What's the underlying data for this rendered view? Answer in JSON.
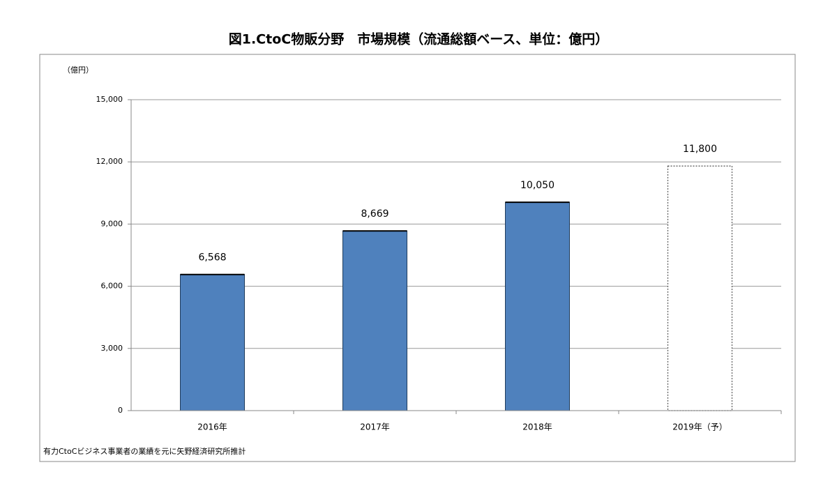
{
  "chart_data": {
    "type": "bar",
    "title": "図1.CtoC物販分野　市場規模（流通総額ベース、単位：億円）",
    "y_label": "（億円）",
    "note": "有力CtoCビジネス事業者の業績を元に矢野経済研究所推計",
    "categories": [
      "2016年",
      "2017年",
      "2018年",
      "2019年（予）"
    ],
    "values": [
      6568,
      8669,
      10050,
      11800
    ],
    "value_labels": [
      "6,568",
      "8,669",
      "10,050",
      "11,800"
    ],
    "colors": [
      "#4f81bd",
      "#4f81bd",
      "#4f81bd",
      "#ffffff"
    ],
    "bar_styles": [
      "solid",
      "solid",
      "solid",
      "dashed"
    ],
    "ylim": [
      0,
      15000
    ],
    "yticks": [
      0,
      {
        "value": 3000,
        "label": "3,000"
      },
      {
        "value": 6000,
        "label": "6,000"
      },
      {
        "value": 9000,
        "label": "9,000"
      },
      {
        "value": 12000,
        "label": "12,000"
      },
      {
        "value": 15000,
        "label": "15,000"
      }
    ],
    "grid": true
  }
}
